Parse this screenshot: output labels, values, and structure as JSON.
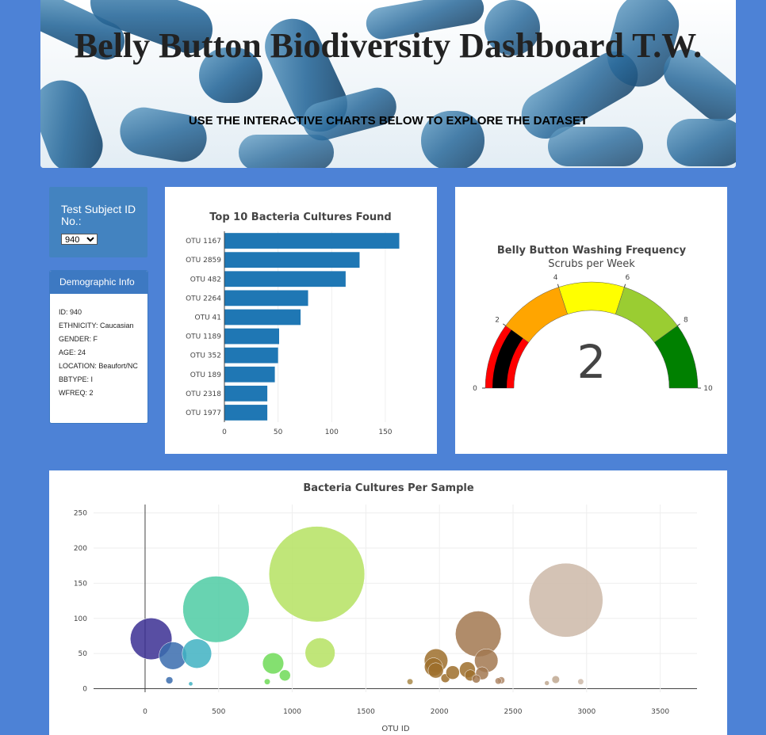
{
  "header": {
    "title": "Belly Button Biodiversity Dashboard T.W.",
    "subtitle": "USE THE INTERACTIVE CHARTS BELOW TO EXPLORE THE DATASET"
  },
  "selector": {
    "label": "Test Subject ID No.:",
    "value": "940"
  },
  "demographics": {
    "heading": "Demographic Info",
    "items": [
      "ID: 940",
      "ETHNICITY: Caucasian",
      "GENDER: F",
      "AGE: 24",
      "LOCATION: Beaufort/NC",
      "BBTYPE: I",
      "WFREQ: 2"
    ]
  },
  "colors": {
    "page_bg": "#4d82d6",
    "bar": "#1f77b4",
    "panel_head": "#3d79c2"
  },
  "chart_data": [
    {
      "type": "bar",
      "orientation": "horizontal",
      "title": "Top 10 Bacteria Cultures Found",
      "categories": [
        "OTU 1167",
        "OTU 2859",
        "OTU 482",
        "OTU 2264",
        "OTU 41",
        "OTU 1189",
        "OTU 352",
        "OTU 189",
        "OTU 2318",
        "OTU 1977"
      ],
      "values": [
        163,
        126,
        113,
        78,
        71,
        51,
        50,
        47,
        40,
        40
      ],
      "xticks": [
        0,
        50,
        100,
        150
      ],
      "xlim": [
        0,
        170
      ]
    },
    {
      "type": "gauge",
      "title": "Belly Button Washing Frequency",
      "subtitle": "Scrubs per Week",
      "value": 2,
      "range": [
        0,
        10
      ],
      "ticks": [
        0,
        2,
        4,
        6,
        8,
        10
      ],
      "steps": [
        {
          "range": [
            0,
            2
          ],
          "color": "#ff0000"
        },
        {
          "range": [
            2,
            4
          ],
          "color": "#ffa500"
        },
        {
          "range": [
            4,
            6
          ],
          "color": "#ffff00"
        },
        {
          "range": [
            6,
            8
          ],
          "color": "#9acd32"
        },
        {
          "range": [
            8,
            10
          ],
          "color": "#008000"
        }
      ],
      "bar_color": "#000000"
    },
    {
      "type": "scatter",
      "title": "Bacteria Cultures Per Sample",
      "xlabel": "OTU ID",
      "xlim": [
        -350,
        3750
      ],
      "ylim": [
        -5,
        262
      ],
      "xticks": [
        0,
        500,
        1000,
        1500,
        2000,
        2500,
        3000,
        3500
      ],
      "yticks": [
        0,
        50,
        100,
        150,
        200,
        250
      ],
      "points": [
        {
          "x": 41,
          "y": 71,
          "color": "#3b2f93"
        },
        {
          "x": 189,
          "y": 47,
          "color": "#3a6cae"
        },
        {
          "x": 165,
          "y": 12,
          "color": "#3a6cae"
        },
        {
          "x": 352,
          "y": 50,
          "color": "#3fb1c2"
        },
        {
          "x": 310,
          "y": 7,
          "color": "#3fb1c2"
        },
        {
          "x": 482,
          "y": 113,
          "color": "#4ecba3"
        },
        {
          "x": 870,
          "y": 36,
          "color": "#6edb57"
        },
        {
          "x": 950,
          "y": 19,
          "color": "#6edb57"
        },
        {
          "x": 830,
          "y": 10,
          "color": "#6edb57"
        },
        {
          "x": 1167,
          "y": 163,
          "color": "#b5e261"
        },
        {
          "x": 1189,
          "y": 51,
          "color": "#b5e261"
        },
        {
          "x": 1800,
          "y": 10,
          "color": "#a98a4a"
        },
        {
          "x": 1977,
          "y": 40,
          "color": "#9e6f2b"
        },
        {
          "x": 1960,
          "y": 31,
          "color": "#9e6f2b"
        },
        {
          "x": 1975,
          "y": 26,
          "color": "#9e6f2b"
        },
        {
          "x": 2040,
          "y": 15,
          "color": "#9e6f2b"
        },
        {
          "x": 2090,
          "y": 23,
          "color": "#9e6f2b"
        },
        {
          "x": 2190,
          "y": 27,
          "color": "#9e6f2b"
        },
        {
          "x": 2210,
          "y": 19,
          "color": "#9e6f2b"
        },
        {
          "x": 2264,
          "y": 78,
          "color": "#a27850"
        },
        {
          "x": 2318,
          "y": 40,
          "color": "#a27850"
        },
        {
          "x": 2290,
          "y": 22,
          "color": "#a27850"
        },
        {
          "x": 2250,
          "y": 14,
          "color": "#a27850"
        },
        {
          "x": 2420,
          "y": 12,
          "color": "#b08a6a"
        },
        {
          "x": 2400,
          "y": 11,
          "color": "#b08a6a"
        },
        {
          "x": 2730,
          "y": 8,
          "color": "#bfa890"
        },
        {
          "x": 2790,
          "y": 13,
          "color": "#bfa890"
        },
        {
          "x": 2859,
          "y": 126,
          "color": "#cdb8a8"
        },
        {
          "x": 2960,
          "y": 10,
          "color": "#cdb8a8"
        }
      ]
    }
  ]
}
